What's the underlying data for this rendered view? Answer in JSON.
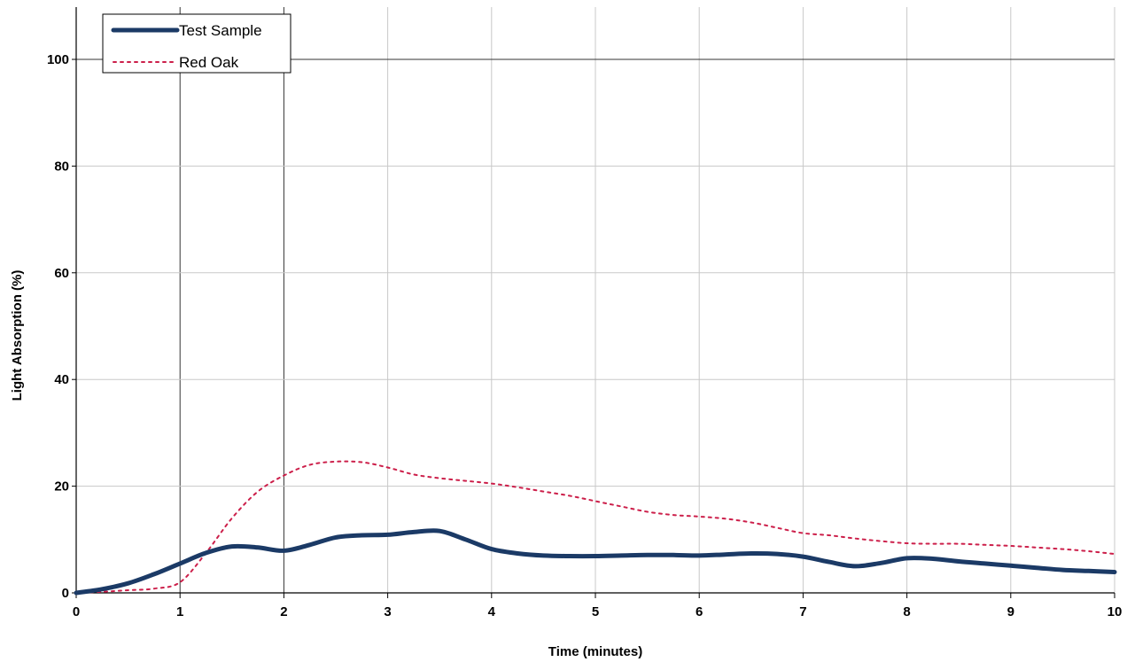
{
  "chart_data": {
    "type": "line",
    "title": "",
    "xlabel": "Time (minutes)",
    "ylabel": "Light Absorption (%)",
    "xlim": [
      0,
      10
    ],
    "ylim": [
      0,
      100
    ],
    "xticks": [
      "0",
      "1",
      "2",
      "3",
      "4",
      "5",
      "6",
      "7",
      "8",
      "9",
      "10"
    ],
    "yticks": [
      "0",
      "20",
      "40",
      "60",
      "80",
      "100"
    ],
    "grid": true,
    "legend_position": "top-left",
    "series": [
      {
        "name": "Test Sample",
        "color": "#1b3a66",
        "style": "solid",
        "x": [
          0,
          0.25,
          0.5,
          0.75,
          1.0,
          1.25,
          1.5,
          1.75,
          2.0,
          2.25,
          2.5,
          2.75,
          3.0,
          3.25,
          3.5,
          3.75,
          4.0,
          4.25,
          4.5,
          4.75,
          5.0,
          5.25,
          5.5,
          5.75,
          6.0,
          6.25,
          6.5,
          6.75,
          7.0,
          7.25,
          7.5,
          7.75,
          8.0,
          8.25,
          8.5,
          8.75,
          9.0,
          9.25,
          9.5,
          9.75,
          10.0
        ],
        "values": [
          0,
          0.7,
          1.8,
          3.5,
          5.5,
          7.5,
          8.7,
          8.5,
          7.9,
          9.0,
          10.4,
          10.8,
          10.9,
          11.4,
          11.6,
          10.0,
          8.2,
          7.4,
          7.0,
          6.9,
          6.9,
          7.0,
          7.1,
          7.1,
          7.0,
          7.2,
          7.4,
          7.3,
          6.8,
          5.8,
          5.0,
          5.6,
          6.5,
          6.4,
          5.9,
          5.5,
          5.1,
          4.7,
          4.3,
          4.1,
          3.9
        ]
      },
      {
        "name": "Red Oak",
        "color": "#cc1f4a",
        "style": "dotted",
        "x": [
          0,
          0.25,
          0.5,
          0.75,
          1.0,
          1.25,
          1.5,
          1.75,
          2.0,
          2.25,
          2.5,
          2.75,
          3.0,
          3.25,
          3.5,
          3.75,
          4.0,
          4.25,
          4.5,
          4.75,
          5.0,
          5.25,
          5.5,
          5.75,
          6.0,
          6.25,
          6.5,
          6.75,
          7.0,
          7.25,
          7.5,
          7.75,
          8.0,
          8.25,
          8.5,
          8.75,
          9.0,
          9.25,
          9.5,
          9.75,
          10.0
        ],
        "values": [
          0,
          0.2,
          0.5,
          0.8,
          2.0,
          7.5,
          14.0,
          19.0,
          22.0,
          24.0,
          24.6,
          24.5,
          23.5,
          22.2,
          21.5,
          21.0,
          20.5,
          19.8,
          19.0,
          18.2,
          17.2,
          16.2,
          15.2,
          14.6,
          14.3,
          13.9,
          13.2,
          12.2,
          11.2,
          10.8,
          10.2,
          9.7,
          9.3,
          9.2,
          9.2,
          9.0,
          8.8,
          8.5,
          8.2,
          7.8,
          7.3
        ]
      }
    ]
  }
}
